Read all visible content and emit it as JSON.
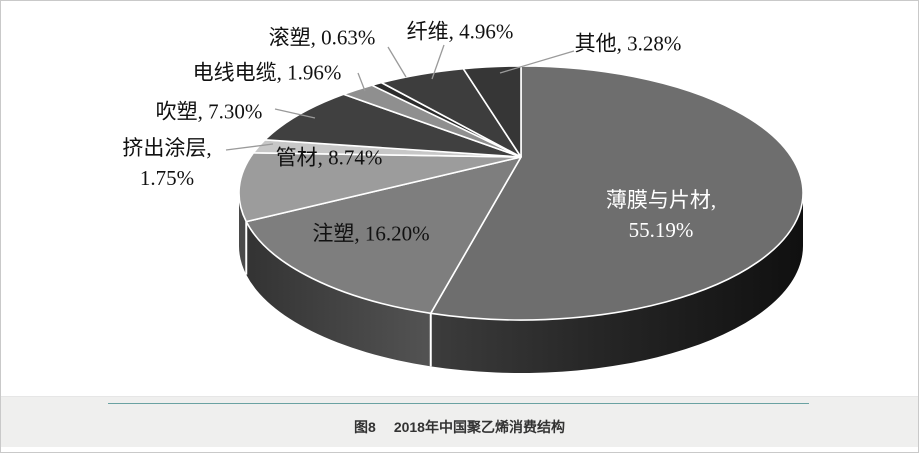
{
  "figure": {
    "caption_prefix": "图8",
    "caption_title": "2018年中国聚乙烯消费结构"
  },
  "chart_data": {
    "type": "pie",
    "is_3d": true,
    "title": "图8 2018年中国聚乙烯消费结构",
    "unit": "%",
    "start_angle_deg": 0,
    "direction": "clockwise",
    "slices": [
      {
        "name": "薄膜与片材",
        "value": 55.19,
        "label_line1": "薄膜与片材,",
        "label_line2": "55.19%",
        "color": "#6e6e6e",
        "label_color": "#ffffff"
      },
      {
        "name": "注塑",
        "value": 16.2,
        "label_text": "注塑, 16.20%",
        "color": "#7e7e7e",
        "label_color": "#111111"
      },
      {
        "name": "管材",
        "value": 8.74,
        "label_text": "管材, 8.74%",
        "color": "#9c9c9c",
        "label_color": "#111111"
      },
      {
        "name": "挤出涂层",
        "value": 1.75,
        "label_line1": "挤出涂层,",
        "label_line2": "1.75%",
        "color": "#c7c7c7",
        "label_color": "#111111"
      },
      {
        "name": "吹塑",
        "value": 7.3,
        "label_text": "吹塑, 7.30%",
        "color": "#404040",
        "label_color": "#111111"
      },
      {
        "name": "电线电缆",
        "value": 1.96,
        "label_text": "电线电缆, 1.96%",
        "color": "#8f8f8f",
        "label_color": "#111111"
      },
      {
        "name": "滚塑",
        "value": 0.63,
        "label_text": "滚塑, 0.63%",
        "color": "#2b2b2b",
        "label_color": "#111111"
      },
      {
        "name": "纤维",
        "value": 4.96,
        "label_text": "纤维, 4.96%",
        "color": "#3d3d3d",
        "label_color": "#111111"
      },
      {
        "name": "其他",
        "value": 3.28,
        "label_text": "其他, 3.28%",
        "color": "#363636",
        "label_color": "#111111"
      }
    ]
  }
}
